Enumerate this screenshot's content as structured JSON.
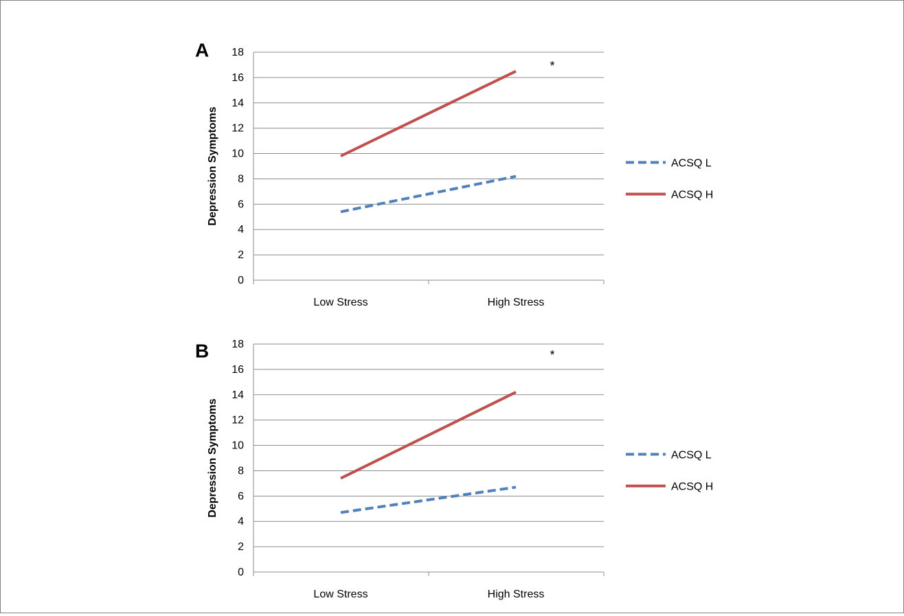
{
  "chart_data": [
    {
      "panel_label": "A",
      "type": "line",
      "categories": [
        "Low Stress",
        "High Stress"
      ],
      "series": [
        {
          "name": "ACSQ L",
          "values": [
            5.4,
            8.2
          ],
          "color": "#4f81bd",
          "dash": "dashed"
        },
        {
          "name": "ACSQ H",
          "values": [
            9.8,
            16.5
          ],
          "color": "#c0504d",
          "dash": "solid"
        }
      ],
      "ylabel": "Depression Symptoms",
      "ylim": [
        0,
        18
      ],
      "yticks": [
        0,
        2,
        4,
        6,
        8,
        10,
        12,
        14,
        16,
        18
      ],
      "grid": "horizontal",
      "legend": "right",
      "annotation": "*"
    },
    {
      "panel_label": "B",
      "type": "line",
      "categories": [
        "Low Stress",
        "High Stress"
      ],
      "series": [
        {
          "name": "ACSQ L",
          "values": [
            4.7,
            6.7
          ],
          "color": "#4f81bd",
          "dash": "dashed"
        },
        {
          "name": "ACSQ H",
          "values": [
            7.4,
            14.2
          ],
          "color": "#c0504d",
          "dash": "solid"
        }
      ],
      "ylabel": "Depression Symptoms",
      "ylim": [
        0,
        18
      ],
      "yticks": [
        0,
        2,
        4,
        6,
        8,
        10,
        12,
        14,
        16,
        18
      ],
      "grid": "horizontal",
      "legend": "right",
      "annotation": "*"
    }
  ]
}
